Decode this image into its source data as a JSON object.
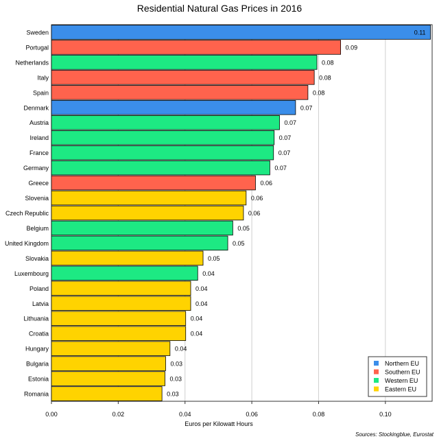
{
  "chart_data": {
    "type": "bar",
    "orientation": "horizontal",
    "title": "Residential Natural Gas Prices in 2016",
    "xlabel": "Euros per Kilowatt Hours",
    "ylabel": "",
    "xlim": [
      0,
      0.114
    ],
    "xticks": [
      0.0,
      0.02,
      0.04,
      0.06,
      0.08,
      0.1
    ],
    "xtick_labels": [
      "0.00",
      "0.02",
      "0.04",
      "0.06",
      "0.08",
      "0.10"
    ],
    "grid": true,
    "legend_position": "bottom-right",
    "source": "Sources: Stockingblue, Eurostat",
    "series_colors": {
      "Northern EU": "#3b8eea",
      "Southern EU": "#ff634d",
      "Western EU": "#1de983",
      "Eastern EU": "#ffd300"
    },
    "legend": [
      "Northern EU",
      "Southern EU",
      "Western EU",
      "Eastern EU"
    ],
    "bars": [
      {
        "category": "Sweden",
        "value": 0.1135,
        "label": "0.11",
        "group": "Northern EU"
      },
      {
        "category": "Portugal",
        "value": 0.0866,
        "label": "0.09",
        "group": "Southern EU"
      },
      {
        "category": "Netherlands",
        "value": 0.0795,
        "label": "0.08",
        "group": "Western EU"
      },
      {
        "category": "Italy",
        "value": 0.0787,
        "label": "0.08",
        "group": "Southern EU"
      },
      {
        "category": "Spain",
        "value": 0.0768,
        "label": "0.08",
        "group": "Southern EU"
      },
      {
        "category": "Denmark",
        "value": 0.0731,
        "label": "0.07",
        "group": "Northern EU"
      },
      {
        "category": "Austria",
        "value": 0.0683,
        "label": "0.07",
        "group": "Western EU"
      },
      {
        "category": "Ireland",
        "value": 0.0667,
        "label": "0.07",
        "group": "Western EU"
      },
      {
        "category": "France",
        "value": 0.0665,
        "label": "0.07",
        "group": "Western EU"
      },
      {
        "category": "Germany",
        "value": 0.0654,
        "label": "0.07",
        "group": "Western EU"
      },
      {
        "category": "Greece",
        "value": 0.0611,
        "label": "0.06",
        "group": "Southern EU"
      },
      {
        "category": "Slovenia",
        "value": 0.0583,
        "label": "0.06",
        "group": "Eastern EU"
      },
      {
        "category": "Czech Republic",
        "value": 0.0575,
        "label": "0.06",
        "group": "Eastern EU"
      },
      {
        "category": "Belgium",
        "value": 0.0543,
        "label": "0.05",
        "group": "Western EU"
      },
      {
        "category": "United Kingdom",
        "value": 0.0528,
        "label": "0.05",
        "group": "Western EU"
      },
      {
        "category": "Slovakia",
        "value": 0.0454,
        "label": "0.05",
        "group": "Eastern EU"
      },
      {
        "category": "Luxembourg",
        "value": 0.0438,
        "label": "0.04",
        "group": "Western EU"
      },
      {
        "category": "Poland",
        "value": 0.0417,
        "label": "0.04",
        "group": "Eastern EU"
      },
      {
        "category": "Latvia",
        "value": 0.0417,
        "label": "0.04",
        "group": "Eastern EU"
      },
      {
        "category": "Lithuania",
        "value": 0.0402,
        "label": "0.04",
        "group": "Eastern EU"
      },
      {
        "category": "Croatia",
        "value": 0.0402,
        "label": "0.04",
        "group": "Eastern EU"
      },
      {
        "category": "Hungary",
        "value": 0.0355,
        "label": "0.04",
        "group": "Eastern EU"
      },
      {
        "category": "Bulgaria",
        "value": 0.0342,
        "label": "0.03",
        "group": "Eastern EU"
      },
      {
        "category": "Estonia",
        "value": 0.034,
        "label": "0.03",
        "group": "Eastern EU"
      },
      {
        "category": "Romania",
        "value": 0.0331,
        "label": "0.03",
        "group": "Eastern EU"
      }
    ]
  }
}
